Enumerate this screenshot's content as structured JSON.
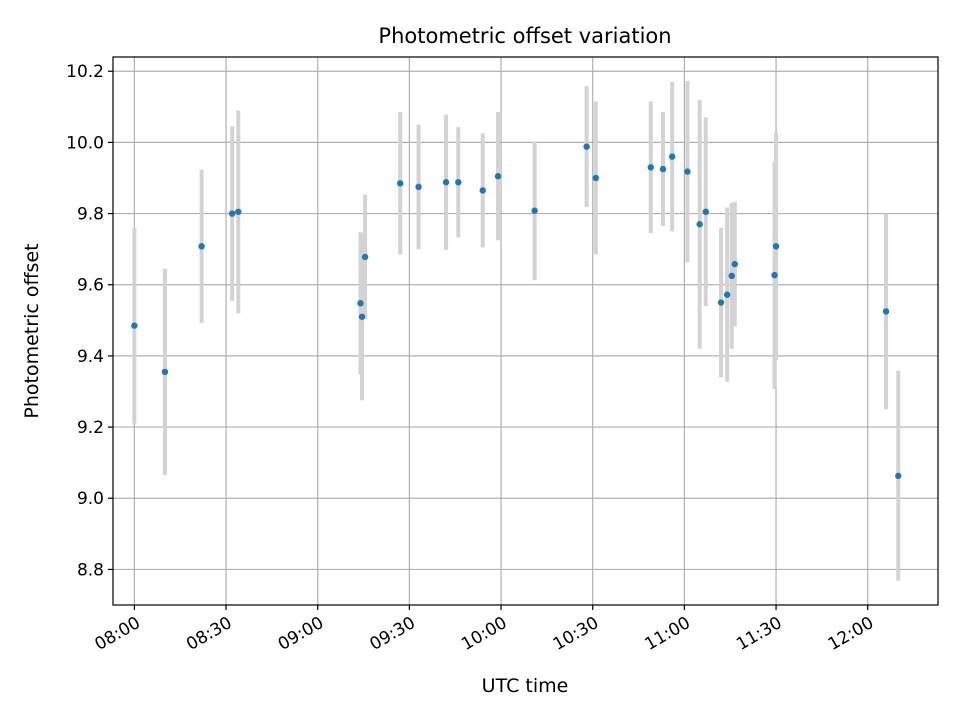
{
  "chart_data": {
    "type": "scatter",
    "title": "Photometric offset variation",
    "xlabel": "UTC time",
    "ylabel": "Photometric offset",
    "x_is_time": true,
    "xlim": [
      "07:53",
      "12:23"
    ],
    "ylim": [
      8.7,
      10.24
    ],
    "x_ticks": [
      "08:00",
      "08:30",
      "09:00",
      "09:30",
      "10:00",
      "10:30",
      "11:00",
      "11:30",
      "12:00"
    ],
    "y_ticks": [
      8.8,
      9.0,
      9.2,
      9.4,
      9.6,
      9.8,
      10.0,
      10.2
    ],
    "grid": true,
    "colors": {
      "points": "#1f77b4",
      "errorbars": "#d3d3d3",
      "grid": "#b0b0b0"
    },
    "series": [
      {
        "points": [
          {
            "x": "08:00",
            "y": 9.485,
            "err": 0.275
          },
          {
            "x": "08:10",
            "y": 9.355,
            "err": 0.29
          },
          {
            "x": "08:22",
            "y": 9.708,
            "err": 0.215
          },
          {
            "x": "08:32",
            "y": 9.8,
            "err": 0.245
          },
          {
            "x": "08:34",
            "y": 9.805,
            "err": 0.285
          },
          {
            "x": "09:14",
            "y": 9.548,
            "err": 0.2
          },
          {
            "x": "09:14:30",
            "y": 9.51,
            "err": 0.235
          },
          {
            "x": "09:15:30",
            "y": 9.678,
            "err": 0.175
          },
          {
            "x": "09:27",
            "y": 9.885,
            "err": 0.2
          },
          {
            "x": "09:33",
            "y": 9.875,
            "err": 0.175
          },
          {
            "x": "09:42",
            "y": 9.888,
            "err": 0.19
          },
          {
            "x": "09:46",
            "y": 9.888,
            "err": 0.155
          },
          {
            "x": "09:54",
            "y": 9.865,
            "err": 0.16
          },
          {
            "x": "09:59",
            "y": 9.905,
            "err": 0.18
          },
          {
            "x": "10:11",
            "y": 9.808,
            "err": 0.195
          },
          {
            "x": "10:28",
            "y": 9.988,
            "err": 0.17
          },
          {
            "x": "10:31",
            "y": 9.9,
            "err": 0.215
          },
          {
            "x": "10:49",
            "y": 9.93,
            "err": 0.185
          },
          {
            "x": "10:53",
            "y": 9.925,
            "err": 0.16
          },
          {
            "x": "10:56",
            "y": 9.96,
            "err": 0.21
          },
          {
            "x": "11:01",
            "y": 9.918,
            "err": 0.255
          },
          {
            "x": "11:05",
            "y": 9.77,
            "err": 0.35
          },
          {
            "x": "11:07",
            "y": 9.805,
            "err": 0.265
          },
          {
            "x": "11:12",
            "y": 9.55,
            "err": 0.21
          },
          {
            "x": "11:14",
            "y": 9.572,
            "err": 0.245
          },
          {
            "x": "11:15:30",
            "y": 9.625,
            "err": 0.205
          },
          {
            "x": "11:16:30",
            "y": 9.658,
            "err": 0.175
          },
          {
            "x": "11:29:30",
            "y": 9.627,
            "err": 0.32
          },
          {
            "x": "11:30",
            "y": 9.708,
            "err": 0.32
          },
          {
            "x": "12:06",
            "y": 9.525,
            "err": 0.275
          },
          {
            "x": "12:10",
            "y": 9.063,
            "err": 0.295
          }
        ]
      }
    ]
  }
}
